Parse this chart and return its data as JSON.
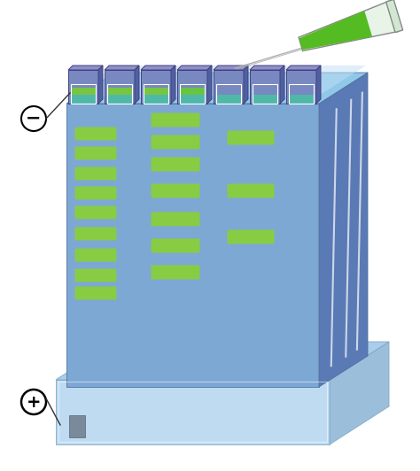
{
  "bg_color": "#ffffff",
  "gel_front_color": "#7da8d4",
  "gel_side_color": "#5a7ab5",
  "gel_top_color": "#6090c0",
  "buffer_front_color": "#b8d8f0",
  "buffer_side_color": "#90b8d8",
  "buffer_top_color": "#a0c8e8",
  "liquid_top_color": "#90c8e8",
  "well_front_color": "#7888c0",
  "well_side_color": "#5060a0",
  "well_top_color": "#9090c8",
  "well_fill_teal": "#50b8a8",
  "well_fill_green": "#66cc33",
  "band_color": "#88cc44",
  "highlight_white": "#ffffff",
  "needle_color": "#b0b0b0",
  "tube_body_color": "#e8f4e8",
  "tube_green_color": "#55bb22",
  "electrode_color": "#7a8a9a",
  "label_line_color": "#333333",
  "gel_outline": "#5070a0",
  "buf_outline": "#80aac8"
}
